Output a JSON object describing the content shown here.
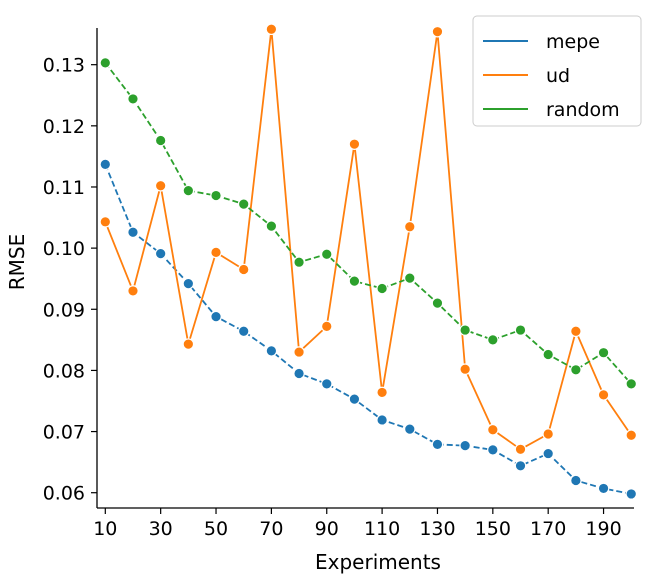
{
  "chart_data": {
    "type": "line",
    "xlabel": "Experiments",
    "ylabel": "RMSE",
    "xlim": [
      7,
      201
    ],
    "ylim": [
      0.0575,
      0.136
    ],
    "x_ticks": [
      10,
      30,
      50,
      70,
      90,
      110,
      130,
      150,
      170,
      190
    ],
    "y_ticks": [
      0.06,
      0.07,
      0.08,
      0.09,
      0.1,
      0.11,
      0.12,
      0.13
    ],
    "y_tick_labels": [
      "0.06",
      "0.07",
      "0.08",
      "0.09",
      "0.10",
      "0.11",
      "0.12",
      "0.13"
    ],
    "x": [
      10,
      20,
      30,
      40,
      50,
      60,
      70,
      80,
      90,
      100,
      110,
      120,
      130,
      140,
      150,
      160,
      170,
      180,
      190,
      200
    ],
    "legend": "top-right",
    "grid": false,
    "series": [
      {
        "name": "mepe",
        "color": "#1f77b4",
        "dashed": true,
        "values": [
          0.1137,
          0.1026,
          0.0991,
          0.0942,
          0.0888,
          0.0864,
          0.0832,
          0.0795,
          0.0778,
          0.0753,
          0.0719,
          0.0704,
          0.0679,
          0.0677,
          0.067,
          0.0644,
          0.0664,
          0.062,
          0.0607,
          0.0598
        ]
      },
      {
        "name": "ud",
        "color": "#ff7f0e",
        "dashed": false,
        "values": [
          0.1043,
          0.093,
          0.1102,
          0.0843,
          0.0993,
          0.0965,
          0.1358,
          0.083,
          0.0872,
          0.117,
          0.0764,
          0.1035,
          0.1354,
          0.0802,
          0.0703,
          0.0671,
          0.0696,
          0.0864,
          0.076,
          0.0694
        ]
      },
      {
        "name": "random",
        "color": "#2ca02c",
        "dashed": true,
        "values": [
          0.1303,
          0.1244,
          0.1176,
          0.1094,
          0.1086,
          0.1072,
          0.1036,
          0.0977,
          0.099,
          0.0946,
          0.0934,
          0.0951,
          0.091,
          0.0866,
          0.085,
          0.0866,
          0.0826,
          0.0801,
          0.0829,
          0.0778
        ]
      }
    ]
  }
}
